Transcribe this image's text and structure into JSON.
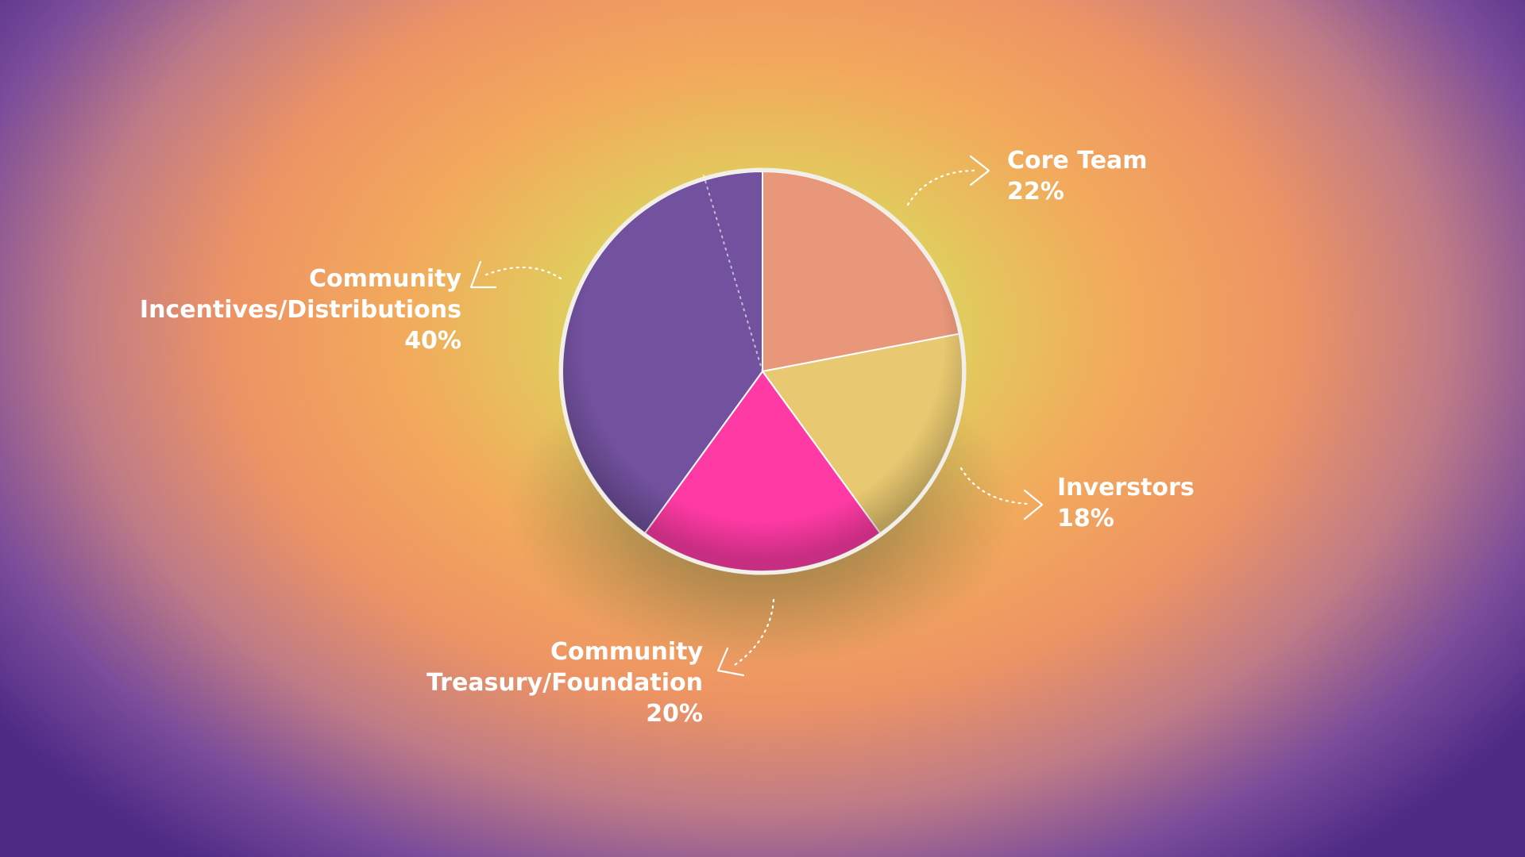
{
  "chart_data": {
    "type": "pie",
    "title": "",
    "start": "top",
    "direction": "clockwise",
    "slices": [
      {
        "label": "Core Team",
        "value": 22,
        "value_text": "22%",
        "color": "#e8977a"
      },
      {
        "label": "Inverstors",
        "value": 18,
        "value_text": "18%",
        "color": "#e8c870"
      },
      {
        "label": "Community Treasury/Foundation",
        "label_lines": [
          "Community",
          "Treasury/Foundation"
        ],
        "value": 20,
        "value_text": "20%",
        "color": "#ff3aa4"
      },
      {
        "label": "Community Incentives/Distributions",
        "label_lines": [
          "Community",
          "Incentives/Distributions"
        ],
        "value": 40,
        "value_text": "40%",
        "color": "#72519e"
      }
    ]
  },
  "colors": {
    "text": "#ffffff",
    "chart_border": "#f2efe9"
  }
}
